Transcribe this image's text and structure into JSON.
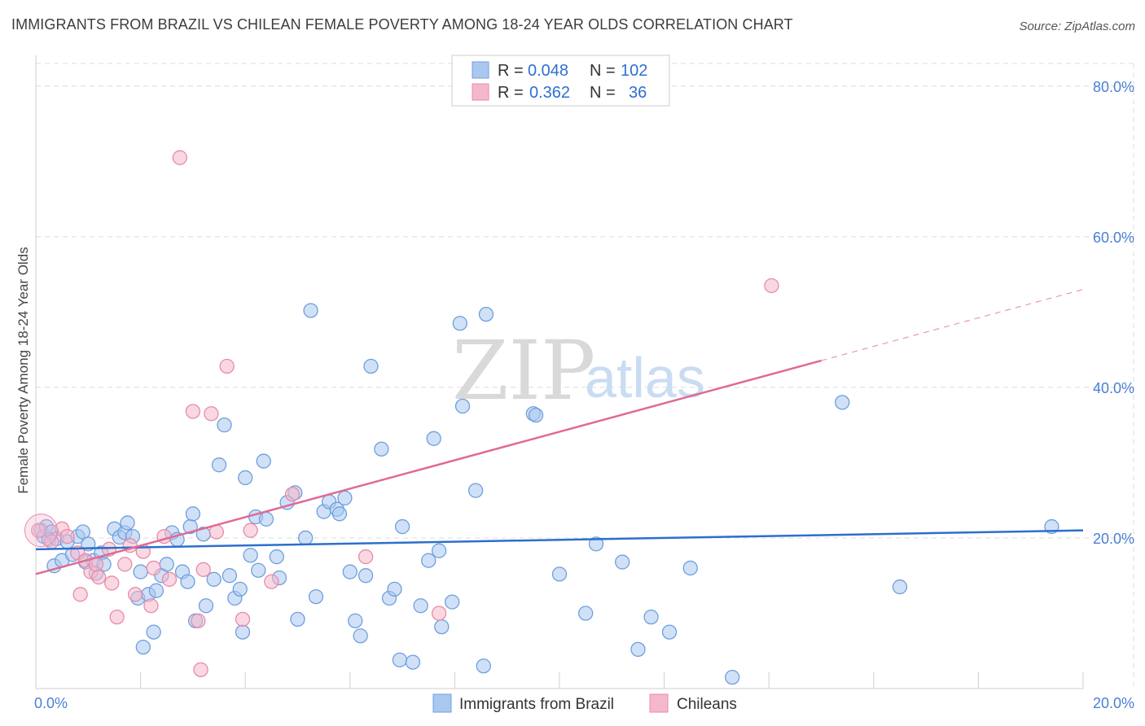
{
  "title": "IMMIGRANTS FROM BRAZIL VS CHILEAN FEMALE POVERTY AMONG 18-24 YEAR OLDS CORRELATION CHART",
  "source": "Source: ZipAtlas.com",
  "watermark": {
    "zip": "ZIP",
    "atlas": "atlas"
  },
  "colors": {
    "blue_fill": "#a9c8f0",
    "blue_stroke": "#6f9fdc",
    "blue_line": "#2c6fcc",
    "pink_fill": "#f5b8cb",
    "pink_stroke": "#e98aa8",
    "pink_line": "#e06a95",
    "grid": "#dcdcdc",
    "tick_text": "#4a7fd4"
  },
  "legend": {
    "r_label": "R =",
    "n_label": "N =",
    "blue": {
      "r": "0.048",
      "n": "102"
    },
    "pink": {
      "r": "0.362",
      "n": "36"
    }
  },
  "chart_data": {
    "type": "scatter",
    "title": "IMMIGRANTS FROM BRAZIL VS CHILEAN FEMALE POVERTY AMONG 18-24 YEAR OLDS CORRELATION CHART",
    "xlabel": "",
    "ylabel": "Female Poverty Among 18-24 Year Olds",
    "xlim": [
      0,
      20
    ],
    "ylim": [
      0,
      83
    ],
    "x_ticks": [
      0,
      20
    ],
    "x_tick_labels": [
      "0.0%",
      "20.0%"
    ],
    "y_ticks": [
      20,
      40,
      60,
      80
    ],
    "y_tick_labels": [
      "20.0%",
      "40.0%",
      "60.0%",
      "80.0%"
    ],
    "legend_position": "top-center",
    "series": [
      {
        "name": "Immigrants from Brazil",
        "color": "#a9c8f0",
        "r": 0.048,
        "n": 102,
        "trend": {
          "x": [
            0,
            20
          ],
          "y": [
            18.5,
            21.0
          ],
          "dashed_from": null
        },
        "points": [
          [
            0.1,
            21.0
          ],
          [
            0.15,
            20.2
          ],
          [
            0.2,
            21.5
          ],
          [
            0.25,
            19.8
          ],
          [
            0.3,
            20.8
          ],
          [
            0.35,
            16.3
          ],
          [
            0.4,
            19.9
          ],
          [
            0.5,
            17.0
          ],
          [
            0.6,
            19.5
          ],
          [
            0.7,
            17.8
          ],
          [
            0.8,
            20.2
          ],
          [
            0.9,
            20.8
          ],
          [
            0.95,
            16.8
          ],
          [
            1.0,
            19.2
          ],
          [
            1.1,
            17.0
          ],
          [
            1.15,
            15.3
          ],
          [
            1.25,
            18.0
          ],
          [
            1.3,
            16.5
          ],
          [
            1.5,
            21.2
          ],
          [
            1.6,
            20.1
          ],
          [
            1.7,
            20.7
          ],
          [
            1.75,
            22.0
          ],
          [
            1.85,
            20.2
          ],
          [
            1.95,
            12.0
          ],
          [
            2.0,
            15.5
          ],
          [
            2.05,
            5.5
          ],
          [
            2.15,
            12.5
          ],
          [
            2.25,
            7.5
          ],
          [
            2.3,
            13.0
          ],
          [
            2.4,
            15.0
          ],
          [
            2.5,
            16.5
          ],
          [
            2.6,
            20.7
          ],
          [
            2.7,
            19.8
          ],
          [
            2.8,
            15.5
          ],
          [
            2.9,
            14.2
          ],
          [
            2.95,
            21.5
          ],
          [
            3.0,
            23.2
          ],
          [
            3.05,
            9.0
          ],
          [
            3.2,
            20.5
          ],
          [
            3.25,
            11.0
          ],
          [
            3.4,
            14.5
          ],
          [
            3.5,
            29.7
          ],
          [
            3.6,
            35.0
          ],
          [
            3.7,
            15.0
          ],
          [
            3.8,
            12.0
          ],
          [
            3.9,
            13.2
          ],
          [
            3.95,
            7.5
          ],
          [
            4.0,
            28.0
          ],
          [
            4.1,
            17.7
          ],
          [
            4.2,
            22.8
          ],
          [
            4.25,
            15.7
          ],
          [
            4.35,
            30.2
          ],
          [
            4.4,
            22.5
          ],
          [
            4.6,
            17.5
          ],
          [
            4.65,
            14.7
          ],
          [
            4.8,
            24.7
          ],
          [
            4.95,
            26.0
          ],
          [
            5.0,
            9.2
          ],
          [
            5.15,
            20.0
          ],
          [
            5.25,
            50.2
          ],
          [
            5.35,
            12.2
          ],
          [
            5.5,
            23.5
          ],
          [
            5.6,
            24.8
          ],
          [
            5.75,
            23.8
          ],
          [
            5.8,
            23.2
          ],
          [
            5.9,
            25.3
          ],
          [
            6.0,
            15.5
          ],
          [
            6.1,
            9.0
          ],
          [
            6.2,
            7.0
          ],
          [
            6.3,
            15.0
          ],
          [
            6.4,
            42.8
          ],
          [
            6.6,
            31.8
          ],
          [
            6.75,
            12.0
          ],
          [
            6.85,
            13.2
          ],
          [
            6.95,
            3.8
          ],
          [
            7.0,
            21.5
          ],
          [
            7.2,
            3.5
          ],
          [
            7.35,
            11.0
          ],
          [
            7.5,
            17.0
          ],
          [
            7.6,
            33.2
          ],
          [
            7.7,
            18.3
          ],
          [
            7.75,
            8.2
          ],
          [
            7.95,
            11.5
          ],
          [
            8.1,
            48.5
          ],
          [
            8.15,
            37.5
          ],
          [
            8.4,
            26.3
          ],
          [
            8.55,
            3.0
          ],
          [
            8.6,
            49.7
          ],
          [
            9.5,
            36.5
          ],
          [
            9.55,
            36.3
          ],
          [
            10.0,
            15.2
          ],
          [
            10.5,
            10.0
          ],
          [
            10.7,
            19.2
          ],
          [
            11.2,
            16.8
          ],
          [
            11.5,
            5.2
          ],
          [
            11.75,
            9.5
          ],
          [
            12.1,
            7.5
          ],
          [
            12.5,
            16.0
          ],
          [
            13.3,
            1.5
          ],
          [
            15.4,
            38.0
          ],
          [
            16.5,
            13.5
          ],
          [
            19.4,
            21.5
          ]
        ]
      },
      {
        "name": "Chileans",
        "color": "#f5b8cb",
        "r": 0.362,
        "n": 36,
        "trend": {
          "x": [
            0,
            20
          ],
          "y": [
            15.2,
            53.0
          ],
          "dashed_from": 15
        },
        "points": [
          [
            0.05,
            21.0
          ],
          [
            0.3,
            19.5
          ],
          [
            0.5,
            21.2
          ],
          [
            0.6,
            20.2
          ],
          [
            0.8,
            18.0
          ],
          [
            0.85,
            12.5
          ],
          [
            0.95,
            17.0
          ],
          [
            1.05,
            15.5
          ],
          [
            1.15,
            16.5
          ],
          [
            1.2,
            14.8
          ],
          [
            1.4,
            18.5
          ],
          [
            1.45,
            14.0
          ],
          [
            1.55,
            9.5
          ],
          [
            1.7,
            16.5
          ],
          [
            1.8,
            19.0
          ],
          [
            1.9,
            12.5
          ],
          [
            2.05,
            18.2
          ],
          [
            2.2,
            11.0
          ],
          [
            2.25,
            16.0
          ],
          [
            2.45,
            20.2
          ],
          [
            2.55,
            14.5
          ],
          [
            2.75,
            70.5
          ],
          [
            3.0,
            36.8
          ],
          [
            3.1,
            9.0
          ],
          [
            3.15,
            2.5
          ],
          [
            3.2,
            15.8
          ],
          [
            3.35,
            36.5
          ],
          [
            3.45,
            20.8
          ],
          [
            3.65,
            42.8
          ],
          [
            3.95,
            9.2
          ],
          [
            4.1,
            21.0
          ],
          [
            4.5,
            14.2
          ],
          [
            4.9,
            25.8
          ],
          [
            6.3,
            17.5
          ],
          [
            7.7,
            10.0
          ],
          [
            14.05,
            53.5
          ]
        ]
      }
    ]
  }
}
